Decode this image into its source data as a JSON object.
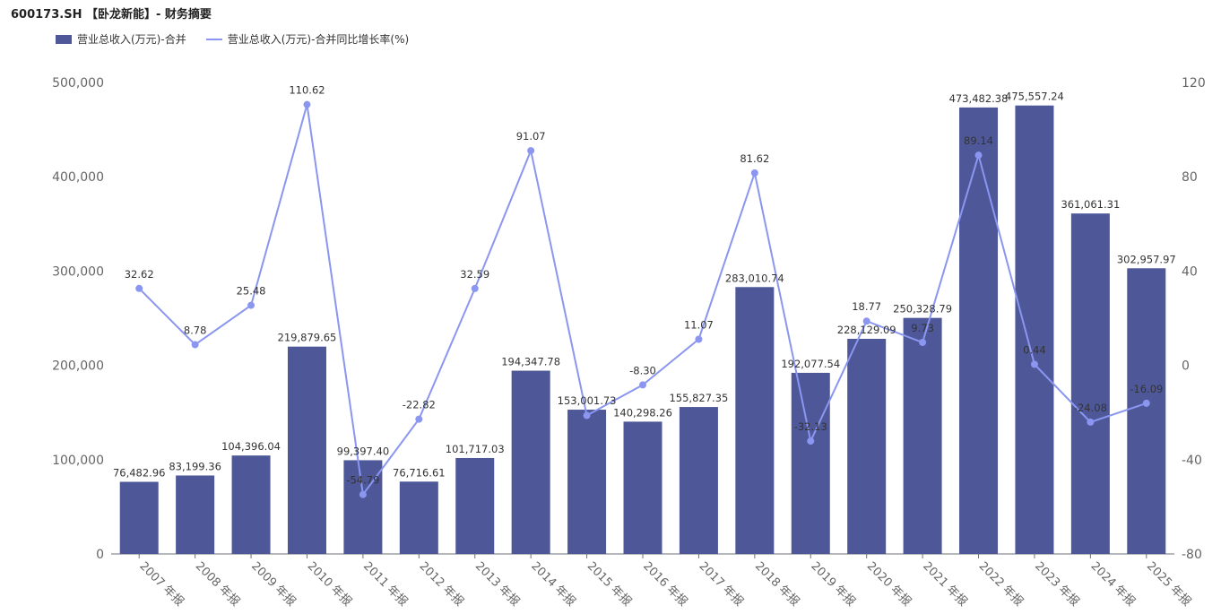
{
  "title": "600173.SH 【卧龙新能】- 财务摘要",
  "legend": {
    "bar": "营业总收入(万元)-合并",
    "line": "营业总收入(万元)-合并同比增长率(%)"
  },
  "colors": {
    "bar": "#4e5899",
    "line": "#8a96f0"
  },
  "chart_data": {
    "type": "bar",
    "categories": [
      "2007 年报",
      "2008 年报",
      "2009 年报",
      "2010 年报",
      "2011 年报",
      "2012 年报",
      "2013 年报",
      "2014 年报",
      "2015 年报",
      "2016 年报",
      "2017 年报",
      "2018 年报",
      "2019 年报",
      "2020 年报",
      "2021 年报",
      "2022 年报",
      "2023 年报",
      "2024 年报",
      "2025 年报"
    ],
    "series": [
      {
        "name": "营业总收入(万元)-合并",
        "type": "bar",
        "axis": "left",
        "values": [
          76482.96,
          83199.36,
          104396.04,
          219879.65,
          99397.4,
          76716.61,
          101717.03,
          194347.78,
          153001.73,
          140298.26,
          155827.35,
          283010.74,
          192077.54,
          228129.09,
          250328.79,
          473482.38,
          475557.24,
          361061.31,
          302957.97
        ],
        "labels": [
          "76,482.96",
          "83,199.36",
          "104,396.04",
          "219,879.65",
          "99,397.40",
          "76,716.61",
          "101,717.03",
          "194,347.78",
          "153,001.73",
          "140,298.26",
          "155,827.35",
          "283,010.74",
          "192,077.54",
          "228,129.09",
          "250,328.79",
          "473,482.38",
          "475,557.24",
          "361,061.31",
          "302,957.97"
        ]
      },
      {
        "name": "营业总收入(万元)-合并同比增长率(%)",
        "type": "line",
        "axis": "right",
        "values": [
          32.62,
          8.78,
          25.48,
          110.62,
          -54.79,
          -22.82,
          32.59,
          91.07,
          -21.27,
          -8.3,
          11.07,
          81.62,
          -32.13,
          18.77,
          9.73,
          89.14,
          0.44,
          -24.08,
          -16.09
        ],
        "labels": [
          "32.62",
          "8.78",
          "25.48",
          "110.62",
          "-54.79",
          "-22.82",
          "32.59",
          "91.07",
          "",
          "-8.30",
          "11.07",
          "81.62",
          "-32.13",
          "18.77",
          "9.73",
          "89.14",
          "0.44",
          "-24.08",
          "-16.09"
        ]
      }
    ],
    "left_axis": {
      "range": [
        0,
        500000
      ],
      "ticks": [
        "0",
        "100,000",
        "200,000",
        "300,000",
        "400,000",
        "500,000"
      ]
    },
    "right_axis": {
      "range": [
        -80,
        120
      ],
      "ticks": [
        "-80",
        "-40",
        "0",
        "40",
        "80",
        "120"
      ]
    },
    "grid": false,
    "legend_position": "top-left"
  }
}
